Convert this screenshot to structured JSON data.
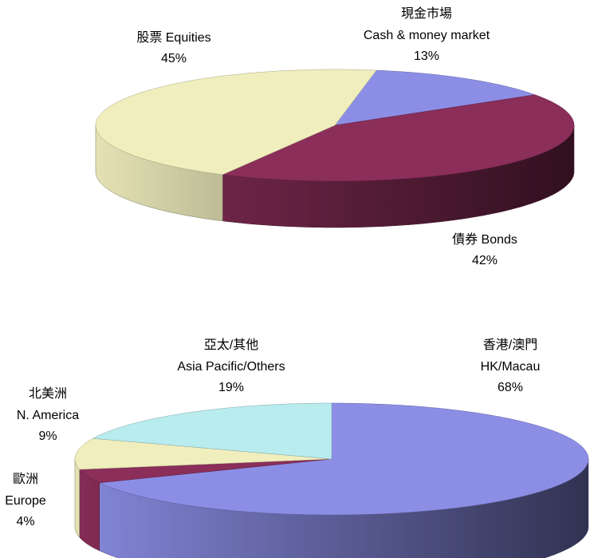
{
  "chart_data": [
    {
      "type": "pie3d",
      "categories": [
        [
          "現金市場",
          "Cash & money market"
        ],
        [
          "債券 Bonds"
        ],
        [
          "股票 Equities"
        ]
      ],
      "values": [
        13,
        42,
        45
      ],
      "value_labels": [
        "13%",
        "42%",
        "45%"
      ],
      "colors": [
        "#8c8ee6",
        "#8b2e5a",
        "#f0eebd"
      ]
    },
    {
      "type": "pie3d",
      "categories": [
        [
          "香港/澳門",
          "HK/Macau"
        ],
        [
          "歐洲",
          "Europe"
        ],
        [
          "北美洲",
          "N. America"
        ],
        [
          "亞太/其他",
          "Asia Pacific/Others"
        ]
      ],
      "values": [
        68,
        4,
        9,
        19
      ],
      "value_labels": [
        "68%",
        "4%",
        "9%",
        "19%"
      ],
      "colors": [
        "#8c8ee6",
        "#8b2e5a",
        "#f0eebd",
        "#b8ecee"
      ]
    }
  ]
}
